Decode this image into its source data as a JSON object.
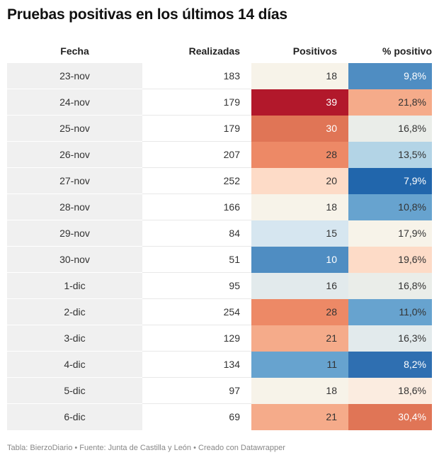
{
  "title": "Pruebas positivas en los últimos 14 días",
  "footer": "Tabla: BierzoDiario • Fuente: Junta de Castilla y León • Creado con Datawrapper",
  "chart_data": {
    "type": "table",
    "columns": [
      "Fecha",
      "Realizadas",
      "Positivos",
      "% positivo"
    ],
    "rows": [
      {
        "fecha": "23-nov",
        "realizadas": "183",
        "positivos": "18",
        "pct": "9,8%",
        "pos_color": "#f7f3e9",
        "pct_color": "#4f8dc2"
      },
      {
        "fecha": "24-nov",
        "realizadas": "179",
        "positivos": "39",
        "pct": "21,8%",
        "pos_color": "#b2182b",
        "pct_color": "#f5ab8a"
      },
      {
        "fecha": "25-nov",
        "realizadas": "179",
        "positivos": "30",
        "pct": "16,8%",
        "pos_color": "#e07556",
        "pct_color": "#eaede9"
      },
      {
        "fecha": "26-nov",
        "realizadas": "207",
        "positivos": "28",
        "pct": "13,5%",
        "pos_color": "#ed8966",
        "pct_color": "#b3d4e6"
      },
      {
        "fecha": "27-nov",
        "realizadas": "252",
        "positivos": "20",
        "pct": "7,9%",
        "pos_color": "#fddbc7",
        "pct_color": "#2166ac"
      },
      {
        "fecha": "28-nov",
        "realizadas": "166",
        "positivos": "18",
        "pct": "10,8%",
        "pos_color": "#f7f3e9",
        "pct_color": "#67a3cf"
      },
      {
        "fecha": "29-nov",
        "realizadas": "84",
        "positivos": "15",
        "pct": "17,9%",
        "pos_color": "#d6e6f0",
        "pct_color": "#f7f3e9"
      },
      {
        "fecha": "30-nov",
        "realizadas": "51",
        "positivos": "10",
        "pct": "19,6%",
        "pos_color": "#4f8dc2",
        "pct_color": "#fddbc7"
      },
      {
        "fecha": "1-dic",
        "realizadas": "95",
        "positivos": "16",
        "pct": "16,8%",
        "pos_color": "#e2eaec",
        "pct_color": "#eaede9"
      },
      {
        "fecha": "2-dic",
        "realizadas": "254",
        "positivos": "28",
        "pct": "11,0%",
        "pos_color": "#ed8966",
        "pct_color": "#67a3cf"
      },
      {
        "fecha": "3-dic",
        "realizadas": "129",
        "positivos": "21",
        "pct": "16,3%",
        "pos_color": "#f5ab8a",
        "pct_color": "#e2eaec"
      },
      {
        "fecha": "4-dic",
        "realizadas": "134",
        "positivos": "11",
        "pct": "8,2%",
        "pos_color": "#67a3cf",
        "pct_color": "#2f6fb1"
      },
      {
        "fecha": "5-dic",
        "realizadas": "97",
        "positivos": "18",
        "pct": "18,6%",
        "pos_color": "#f7f3e9",
        "pct_color": "#fbece0"
      },
      {
        "fecha": "6-dic",
        "realizadas": "69",
        "positivos": "21",
        "pct": "30,4%",
        "pos_color": "#f5ab8a",
        "pct_color": "#e07556"
      }
    ]
  }
}
